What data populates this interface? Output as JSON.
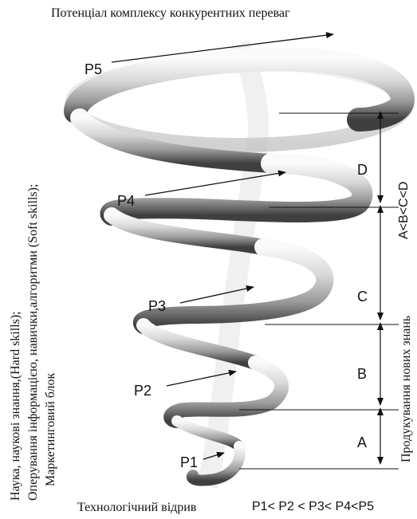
{
  "top_title": "Потенціал комплексу конкурентних переваг",
  "bottom_left": "Технологічний відрив",
  "bottom_right": "P1< P2 < P3< P4<P5",
  "left_labels": [
    "Наука, наукові знання,(Hard skills);",
    "Оперування інформацією, навички,алгоритми (Soft skills);",
    "Маркетинговий блок"
  ],
  "right_label": "Продукування нових знань",
  "inequality": "A<B<C<D",
  "points": [
    {
      "id": "p1",
      "label": "P1"
    },
    {
      "id": "p2",
      "label": "P2"
    },
    {
      "id": "p3",
      "label": "P3"
    },
    {
      "id": "p4",
      "label": "P4"
    },
    {
      "id": "p5",
      "label": "P5"
    }
  ],
  "segments": [
    {
      "id": "a",
      "label": "A"
    },
    {
      "id": "b",
      "label": "B"
    },
    {
      "id": "c",
      "label": "C"
    },
    {
      "id": "d",
      "label": "D"
    }
  ],
  "icons": {
    "spiral": "spiral-cone-icon",
    "arrow": "arrow-icon"
  }
}
